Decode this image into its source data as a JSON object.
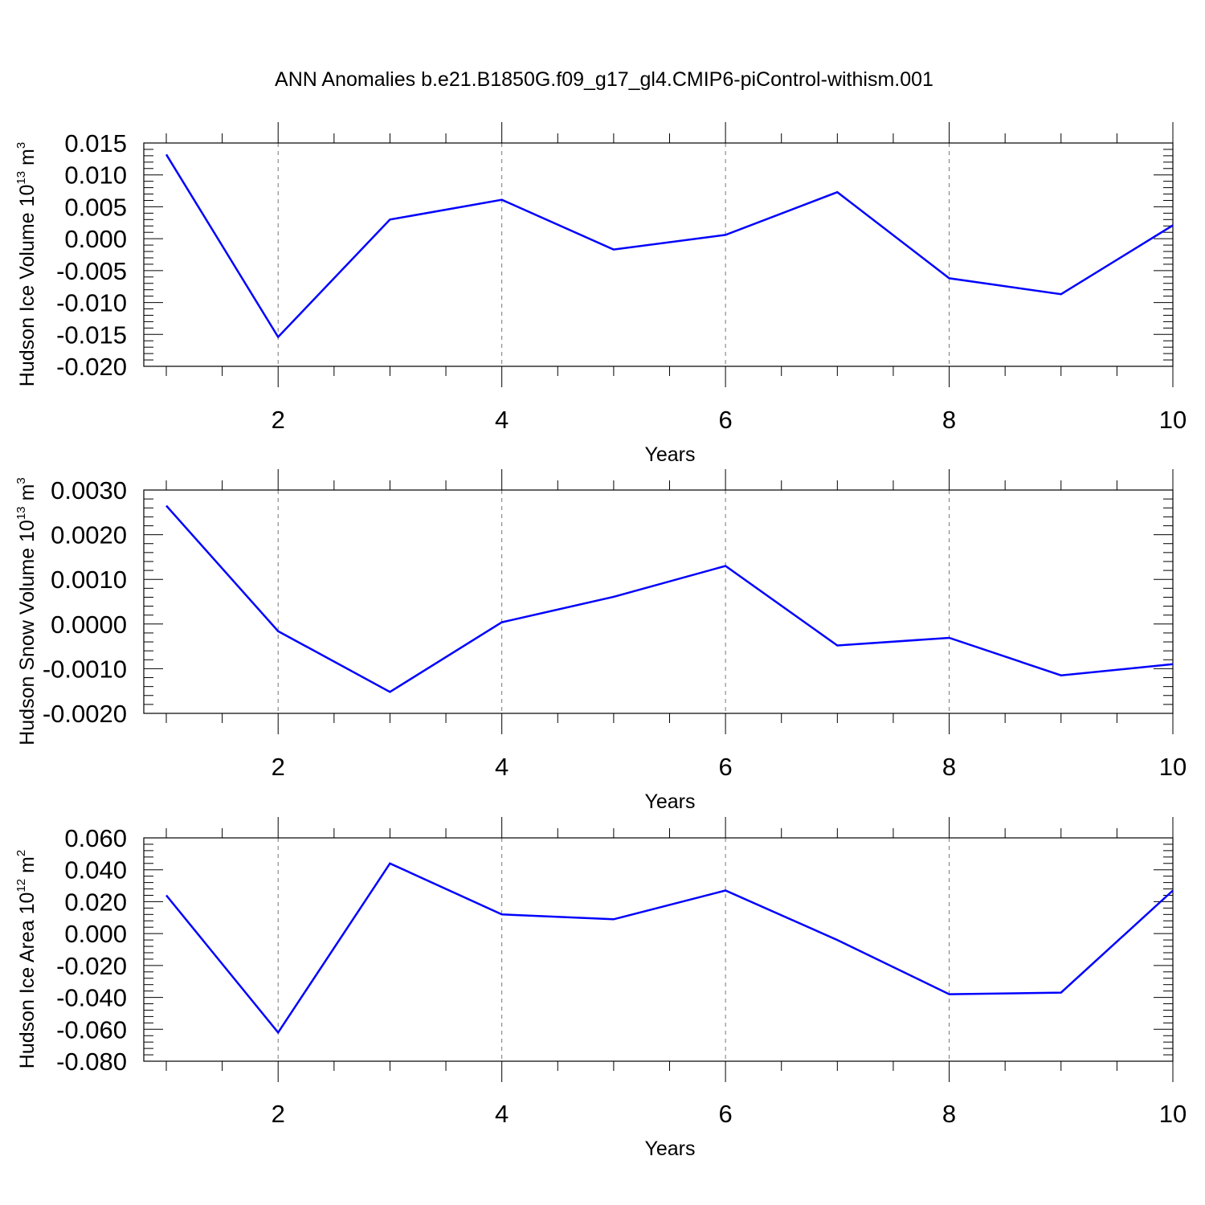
{
  "title": "ANN Anomalies b.e21.B1850G.f09_g17_gl4.CMIP6-piControl-withism.001",
  "chart_data": [
    {
      "type": "line",
      "xlabel": "Years",
      "ylabel": {
        "text": "Hudson Ice Volume 10",
        "exponent": "13",
        "unit": " m",
        "unit_exponent": "3"
      },
      "xlim": [
        1,
        10
      ],
      "ylim": [
        -0.02,
        0.015
      ],
      "xticks": [
        "2",
        "4",
        "6",
        "8",
        "10"
      ],
      "yticks": [
        "0.015",
        "0.010",
        "0.005",
        "0.000",
        "-0.005",
        "-0.010",
        "-0.015",
        "-0.020"
      ],
      "line_color": "#0000ff",
      "x": [
        1,
        2,
        3,
        4,
        5,
        6,
        7,
        8,
        9,
        10
      ],
      "values": [
        0.0132,
        -0.0154,
        0.003,
        0.0061,
        -0.0017,
        0.0006,
        0.0073,
        -0.0062,
        -0.0087,
        0.0021
      ]
    },
    {
      "type": "line",
      "xlabel": "Years",
      "ylabel": {
        "text": "Hudson Snow Volume 10",
        "exponent": "13",
        "unit": " m",
        "unit_exponent": "3"
      },
      "xlim": [
        1,
        10
      ],
      "ylim": [
        -0.002,
        0.003
      ],
      "xticks": [
        "2",
        "4",
        "6",
        "8",
        "10"
      ],
      "yticks": [
        "0.0030",
        "0.0020",
        "0.0010",
        "0.0000",
        "-0.0010",
        "-0.0020"
      ],
      "line_color": "#0000ff",
      "x": [
        1,
        2,
        3,
        4,
        5,
        6,
        7,
        8,
        9,
        10
      ],
      "values": [
        0.00265,
        -0.00016,
        -0.00152,
        4e-05,
        0.00061,
        0.0013,
        -0.00048,
        -0.00031,
        -0.00115,
        -0.0009
      ]
    },
    {
      "type": "line",
      "xlabel": "Years",
      "ylabel": {
        "text": "Hudson Ice Area 10",
        "exponent": "12",
        "unit": " m",
        "unit_exponent": "2"
      },
      "xlim": [
        1,
        10
      ],
      "ylim": [
        -0.08,
        0.06
      ],
      "xticks": [
        "2",
        "4",
        "6",
        "8",
        "10"
      ],
      "yticks": [
        "0.060",
        "0.040",
        "0.020",
        "0.000",
        "-0.020",
        "-0.040",
        "-0.060",
        "-0.080"
      ],
      "line_color": "#0000ff",
      "x": [
        1,
        2,
        3,
        4,
        5,
        6,
        7,
        8,
        9,
        10
      ],
      "values": [
        0.024,
        -0.062,
        0.044,
        0.012,
        0.009,
        0.027,
        -0.004,
        -0.038,
        -0.037,
        0.027
      ]
    }
  ]
}
